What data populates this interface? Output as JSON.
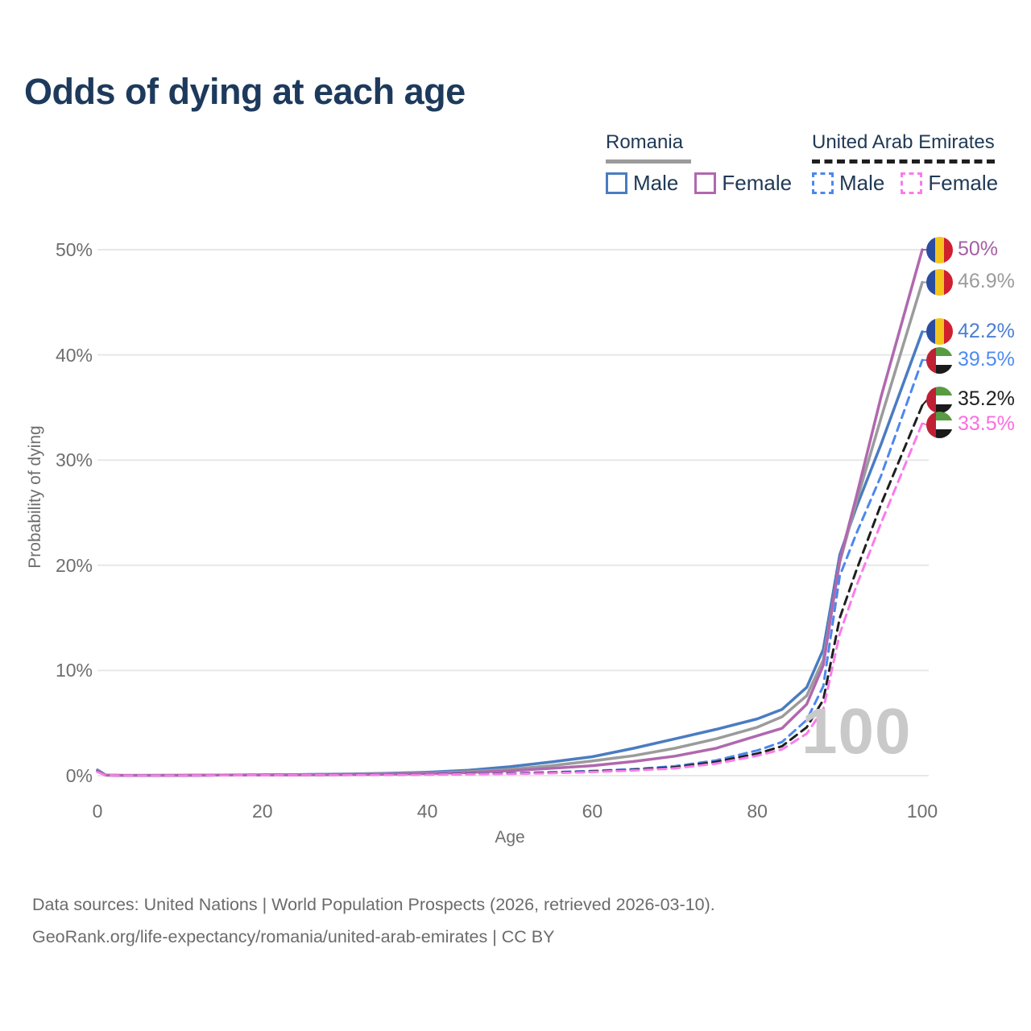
{
  "title": "Odds of dying at each age",
  "watermark": "100",
  "legend": {
    "romania": {
      "label": "Romania",
      "male": "Male",
      "female": "Female"
    },
    "uae": {
      "label": "United Arab Emirates",
      "male": "Male",
      "female": "Female"
    }
  },
  "footer": {
    "line1": "Data sources: United Nations | World Population Prospects (2026, retrieved 2026-03-10).",
    "line2": "GeoRank.org/life-expectancy/romania/united-arab-emirates | CC BY"
  },
  "chart_data": {
    "type": "line",
    "title": "Odds of dying at each age",
    "xlabel": "Age",
    "ylabel": "Probability of dying",
    "xlim": [
      0,
      100
    ],
    "ylim": [
      0,
      50
    ],
    "grid": true,
    "legend_position": "top-right",
    "xticks": {
      "values": [
        0,
        20,
        40,
        60,
        80,
        100
      ],
      "labels": [
        "0",
        "20",
        "40",
        "60",
        "80",
        "100"
      ]
    },
    "yticks": {
      "values": [
        0,
        10,
        20,
        30,
        40,
        50
      ],
      "labels": [
        "0%",
        "10%",
        "20%",
        "30%",
        "40%",
        "50%"
      ]
    },
    "ages": [
      0,
      1,
      3,
      5,
      10,
      15,
      20,
      25,
      30,
      35,
      40,
      45,
      50,
      55,
      60,
      65,
      70,
      75,
      80,
      83,
      86,
      88,
      90,
      92,
      95,
      100
    ],
    "series": [
      {
        "id": "romania-male",
        "name": "Romania Male",
        "color": "#4a7cc1",
        "dash": false,
        "end_label": "42.2%",
        "values": [
          0.55,
          0.05,
          0.03,
          0.03,
          0.04,
          0.06,
          0.08,
          0.11,
          0.15,
          0.22,
          0.33,
          0.52,
          0.85,
          1.3,
          1.8,
          2.6,
          3.5,
          4.4,
          5.4,
          6.3,
          8.4,
          12.0,
          21.0,
          25.5,
          31.5,
          42.2
        ]
      },
      {
        "id": "romania-all",
        "name": "Romania Both sexes",
        "color": "#9b9b9b",
        "dash": false,
        "end_label": "46.9%",
        "values": [
          0.5,
          0.05,
          0.03,
          0.03,
          0.03,
          0.05,
          0.07,
          0.09,
          0.12,
          0.17,
          0.25,
          0.38,
          0.6,
          0.95,
          1.4,
          1.9,
          2.6,
          3.5,
          4.6,
          5.6,
          7.6,
          11.0,
          20.3,
          26.0,
          34.0,
          46.9
        ]
      },
      {
        "id": "romania-female",
        "name": "Romania Female",
        "color": "#b068ae",
        "dash": false,
        "end_label": "50%",
        "values": [
          0.45,
          0.045,
          0.025,
          0.025,
          0.03,
          0.05,
          0.06,
          0.08,
          0.1,
          0.14,
          0.2,
          0.3,
          0.47,
          0.7,
          0.95,
          1.35,
          1.85,
          2.6,
          3.8,
          4.5,
          6.8,
          10.5,
          20.5,
          26.5,
          36.0,
          50.0
        ]
      },
      {
        "id": "uae-male",
        "name": "United Arab Emirates Male",
        "color": "#4d87ee",
        "dash": true,
        "end_label": "39.5%",
        "values": [
          0.4,
          0.04,
          0.02,
          0.02,
          0.02,
          0.04,
          0.05,
          0.06,
          0.08,
          0.1,
          0.13,
          0.17,
          0.23,
          0.32,
          0.45,
          0.62,
          0.9,
          1.45,
          2.4,
          3.2,
          5.3,
          8.5,
          19.0,
          23.0,
          28.5,
          39.5
        ]
      },
      {
        "id": "uae-all",
        "name": "United Arab Emirates Both sexes",
        "color": "#1f1f1f",
        "dash": true,
        "end_label": "35.2%",
        "values": [
          0.38,
          0.04,
          0.02,
          0.02,
          0.02,
          0.035,
          0.045,
          0.055,
          0.07,
          0.09,
          0.115,
          0.15,
          0.2,
          0.28,
          0.4,
          0.55,
          0.8,
          1.3,
          2.1,
          2.8,
          4.6,
          7.2,
          15.0,
          19.5,
          25.8,
          35.2
        ]
      },
      {
        "id": "uae-female",
        "name": "United Arab Emirates Female",
        "color": "#f97ce8",
        "dash": true,
        "end_label": "33.5%",
        "values": [
          0.35,
          0.035,
          0.02,
          0.02,
          0.02,
          0.03,
          0.04,
          0.05,
          0.06,
          0.08,
          0.1,
          0.13,
          0.17,
          0.24,
          0.35,
          0.5,
          0.7,
          1.15,
          1.9,
          2.5,
          4.0,
          6.3,
          13.5,
          18.0,
          24.0,
          33.5
        ]
      }
    ],
    "end_labels": [
      {
        "text": "50%",
        "pct": 50,
        "dy": 0,
        "flag": "romania",
        "color": "#a55fa3"
      },
      {
        "text": "46.9%",
        "pct": 46.9,
        "dy": 0,
        "flag": "romania",
        "color": "#9b9b9b"
      },
      {
        "text": "42.2%",
        "pct": 42.2,
        "dy": 0,
        "flag": "romania",
        "color": "#4a7fd4"
      },
      {
        "text": "39.5%",
        "pct": 39.5,
        "dy": 0,
        "flag": "uae",
        "color": "#4f8bf0"
      },
      {
        "text": "35.2%",
        "pct": 35.2,
        "dy": -7,
        "flag": "uae",
        "color": "#1f1f1f"
      },
      {
        "text": "33.5%",
        "pct": 33.5,
        "dy": 2,
        "flag": "uae",
        "color": "#fb6ee0"
      }
    ],
    "flag_colors": {
      "romania": [
        "#2a4d9f",
        "#f5c51d",
        "#d01f2f"
      ],
      "uae": [
        "#bf2033",
        "#589b43",
        "#ffffff",
        "#1a1a1a"
      ]
    },
    "grid_color": "#e7e7e7",
    "tick_color": "#6e6e6e"
  }
}
